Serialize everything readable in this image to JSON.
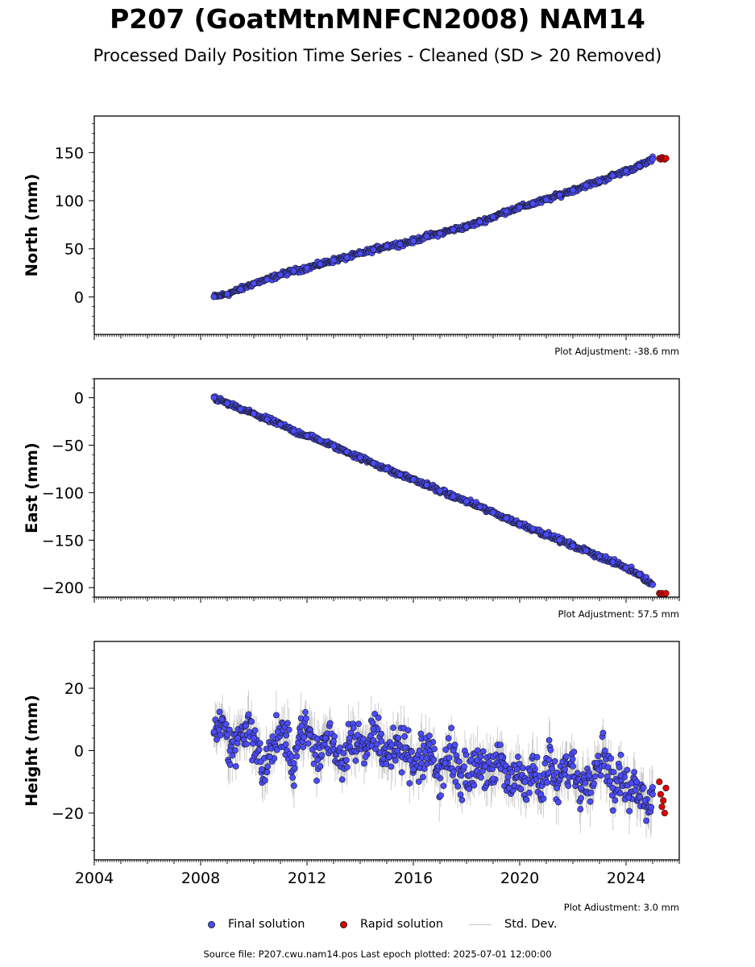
{
  "header": {
    "title": "P207 (GoatMtnMNFCN2008) NAM14",
    "subtitle": "Processed Daily Position Time Series - Cleaned (SD > 20 Removed)"
  },
  "legend": {
    "final_label": "Final solution",
    "rapid_label": "Rapid solution",
    "std_label": "Std. Dev."
  },
  "footer": {
    "source": "Source file: P207.cwu.nam14.pos  Last epoch plotted: 2025-07-01 12:00:00"
  },
  "colors": {
    "final": "#4b4bff",
    "rapid": "#e00000",
    "std": "#555555",
    "marker_edge": "#1a1a1a"
  },
  "chart_data": [
    {
      "type": "scatter",
      "ylabel": "North (mm)",
      "xlim": [
        2004.0,
        2026.0
      ],
      "ylim": [
        -39,
        188
      ],
      "yticks": [
        0,
        50,
        100,
        150
      ],
      "xticks": [],
      "adjustment": "Plot Adjustment: -38.6 mm",
      "series": [
        {
          "x": [
            2008.5,
            2009.0,
            2009.5,
            2010.0,
            2010.5,
            2011.0,
            2011.5,
            2012.0,
            2012.5,
            2013.0,
            2013.5,
            2014.0,
            2014.5,
            2015.0,
            2015.5,
            2016.0,
            2016.5,
            2017.0,
            2017.5,
            2018.0,
            2018.5,
            2019.0,
            2019.5,
            2020.0,
            2020.5,
            2021.0,
            2021.5,
            2022.0,
            2022.5,
            2023.0,
            2023.5,
            2024.0,
            2024.5,
            2025.0
          ],
          "y": [
            0,
            3,
            8,
            14,
            18,
            23,
            27,
            30,
            34,
            38,
            41,
            45,
            49,
            53,
            55,
            58,
            63,
            66,
            70,
            73,
            78,
            83,
            89,
            93,
            97,
            101,
            106,
            111,
            116,
            120,
            126,
            131,
            136,
            143
          ]
        },
        {
          "x": [
            2025.25,
            2025.3,
            2025.35,
            2025.4,
            2025.45,
            2025.5
          ],
          "y": [
            144,
            143,
            145,
            144,
            143,
            144
          ]
        }
      ]
    },
    {
      "type": "scatter",
      "ylabel": "East (mm)",
      "xlim": [
        2004.0,
        2026.0
      ],
      "ylim": [
        -210,
        20
      ],
      "yticks": [
        -200,
        -150,
        -100,
        -50,
        0
      ],
      "xticks": [],
      "adjustment": "Plot Adjustment: 57.5 mm",
      "series": [
        {
          "x": [
            2008.5,
            2009.0,
            2009.5,
            2010.0,
            2010.5,
            2011.0,
            2011.5,
            2012.0,
            2012.5,
            2013.0,
            2013.5,
            2014.0,
            2014.5,
            2015.0,
            2015.5,
            2016.0,
            2016.5,
            2017.0,
            2017.5,
            2018.0,
            2018.5,
            2019.0,
            2019.5,
            2020.0,
            2020.5,
            2021.0,
            2021.5,
            2022.0,
            2022.5,
            2023.0,
            2023.5,
            2024.0,
            2024.5,
            2025.0
          ],
          "y": [
            0,
            -6,
            -12,
            -17,
            -23,
            -28,
            -35,
            -40,
            -45,
            -51,
            -57,
            -63,
            -69,
            -75,
            -81,
            -86,
            -92,
            -98,
            -104,
            -109,
            -115,
            -121,
            -127,
            -133,
            -138,
            -144,
            -150,
            -156,
            -161,
            -167,
            -173,
            -179,
            -186,
            -197
          ]
        },
        {
          "x": [
            2025.25,
            2025.3,
            2025.35,
            2025.4,
            2025.45,
            2025.5
          ],
          "y": [
            -206,
            -207,
            -206,
            -208,
            -207,
            -206
          ]
        }
      ]
    },
    {
      "type": "scatter",
      "ylabel": "Height (mm)",
      "xlim": [
        2004.0,
        2026.0
      ],
      "ylim": [
        -35,
        35
      ],
      "yticks": [
        -20,
        0,
        20
      ],
      "xticks": [
        2004,
        2008,
        2012,
        2016,
        2020,
        2024
      ],
      "adjustment": "Plot Adjustment: 3.0 mm",
      "series": [
        {
          "x": [
            2008.5,
            2008.8,
            2009.1,
            2009.4,
            2009.7,
            2010.0,
            2010.3,
            2010.6,
            2010.9,
            2011.2,
            2011.5,
            2011.8,
            2012.1,
            2012.4,
            2012.7,
            2013.0,
            2013.3,
            2013.6,
            2013.9,
            2014.2,
            2014.5,
            2014.8,
            2015.1,
            2015.4,
            2015.7,
            2016.0,
            2016.3,
            2016.6,
            2016.9,
            2017.2,
            2017.5,
            2017.8,
            2018.1,
            2018.4,
            2018.7,
            2019.0,
            2019.3,
            2019.6,
            2019.9,
            2020.2,
            2020.5,
            2020.8,
            2021.1,
            2021.4,
            2021.7,
            2022.0,
            2022.3,
            2022.6,
            2022.9,
            2023.2,
            2023.5,
            2023.8,
            2024.1,
            2024.4,
            2024.7,
            2025.0
          ],
          "y": [
            6,
            10,
            0,
            4,
            8,
            4,
            -6,
            -2,
            6,
            2,
            -4,
            8,
            5,
            -3,
            4,
            3,
            -4,
            4,
            5,
            -2,
            7,
            3,
            -2,
            0,
            1,
            -6,
            -4,
            2,
            -8,
            -4,
            0,
            -8,
            -8,
            -3,
            -5,
            -9,
            -2,
            -12,
            -6,
            -10,
            -5,
            -14,
            -3,
            -12,
            -6,
            -5,
            -12,
            -8,
            -4,
            0,
            -12,
            -8,
            -15,
            -10,
            -16,
            -14
          ]
        },
        {
          "x": [
            2025.25,
            2025.3,
            2025.35,
            2025.4,
            2025.45,
            2025.5
          ],
          "y": [
            -10,
            -14,
            -18,
            -16,
            -20,
            -12
          ]
        }
      ]
    }
  ]
}
